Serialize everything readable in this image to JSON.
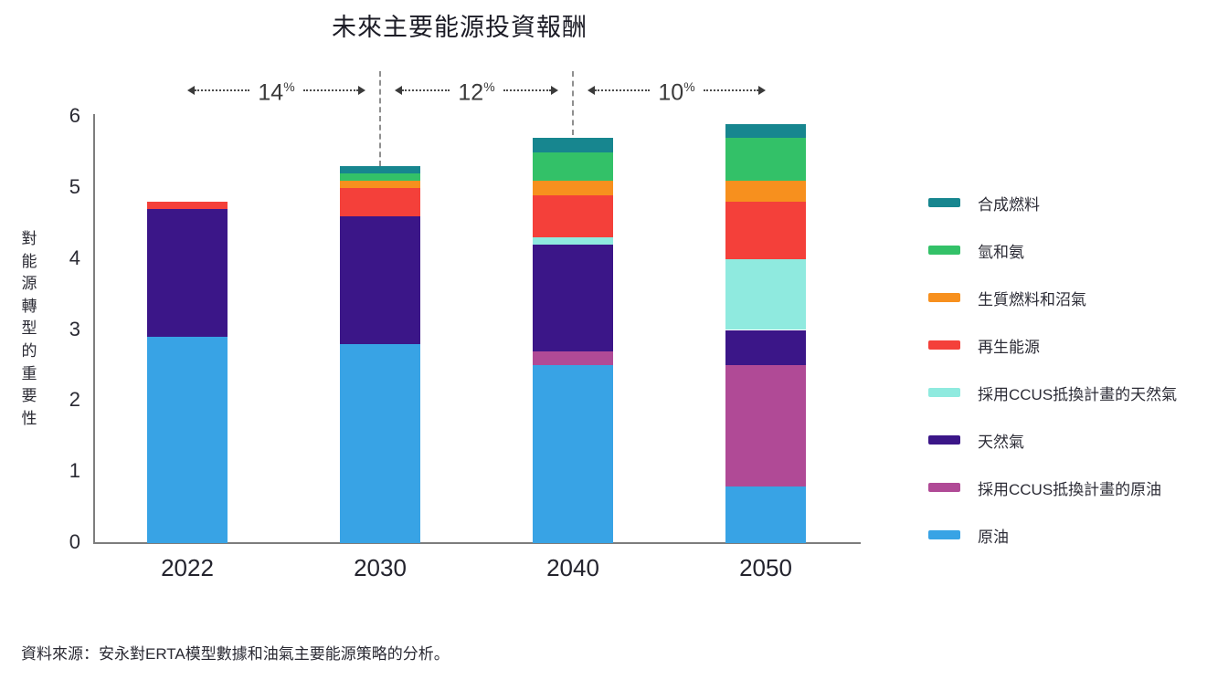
{
  "title": "未來主要能源投資報酬",
  "source_note": "資料來源：安永對ERTA模型數據和油氣主要能源策略的分析。",
  "annotations": [
    {
      "value": "14",
      "unit": "%"
    },
    {
      "value": "12",
      "unit": "%"
    },
    {
      "value": "10",
      "unit": "%"
    }
  ],
  "chart_data": {
    "type": "bar",
    "stacked": true,
    "title": "未來主要能源投資報酬",
    "ylabel": "對能源轉型的重要性",
    "ylim": [
      0,
      6
    ],
    "y_ticks": [
      0,
      1,
      2,
      3,
      4,
      5,
      6
    ],
    "grid": false,
    "legend_position": "right",
    "categories": [
      "2022",
      "2030",
      "2040",
      "2050"
    ],
    "series_bottom_to_top": [
      {
        "name": "原油",
        "color": "#38A3E5",
        "values": [
          2.9,
          2.8,
          2.5,
          0.8
        ]
      },
      {
        "name": "採用CCUS抵換計畫的原油",
        "color": "#B04A96",
        "values": [
          0,
          0,
          0.2,
          1.7
        ]
      },
      {
        "name": "天然氣",
        "color": "#3B1688",
        "values": [
          1.8,
          1.8,
          1.5,
          0.5
        ]
      },
      {
        "name": "採用CCUS抵換計畫的天然氣",
        "color": "#8FEADF",
        "values": [
          0,
          0,
          0.1,
          1.0
        ]
      },
      {
        "name": "再生能源",
        "color": "#F4403A",
        "values": [
          0.1,
          0.4,
          0.6,
          0.8
        ]
      },
      {
        "name": "生質燃料和沼氣",
        "color": "#F7901E",
        "values": [
          0,
          0.1,
          0.2,
          0.3
        ]
      },
      {
        "name": "氫和氨",
        "color": "#33C168",
        "values": [
          0,
          0.1,
          0.4,
          0.6
        ]
      },
      {
        "name": "合成燃料",
        "color": "#17868F",
        "values": [
          0,
          0.1,
          0.2,
          0.2
        ]
      }
    ],
    "totals": [
      4.8,
      5.3,
      5.7,
      5.9
    ],
    "annotations_between_bars": [
      "14%",
      "12%",
      "10%"
    ],
    "legend_order_top_to_bottom": [
      "合成燃料",
      "氫和氨",
      "生質燃料和沼氣",
      "再生能源",
      "採用CCUS抵換計畫的天然氣",
      "天然氣",
      "採用CCUS抵換計畫的原油",
      "原油"
    ]
  }
}
